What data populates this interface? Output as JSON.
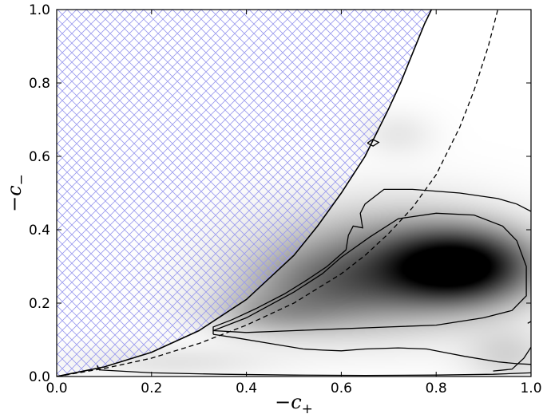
{
  "chart_data": {
    "type": "heatmap",
    "title": "",
    "xlabel": "−c",
    "xlabel_sub": "+",
    "ylabel": "−c",
    "ylabel_sub": "−",
    "xlim": [
      0.0,
      1.0
    ],
    "ylim": [
      0.0,
      1.0
    ],
    "grid": false,
    "x_ticks": [
      "0.0",
      "0.2",
      "0.4",
      "0.6",
      "0.8",
      "1.0"
    ],
    "y_ticks": [
      "0.0",
      "0.2",
      "0.4",
      "0.6",
      "0.8",
      "1.0"
    ],
    "colormap": "grayscale (white = low, black = high density)",
    "hatch_color": "#9999ee",
    "density_peak": {
      "x": 0.85,
      "y": 0.3
    },
    "density_blobs": [
      {
        "x": 0.85,
        "y": 0.3,
        "sx": 0.1,
        "sy": 0.065,
        "w": 1.0
      },
      {
        "x": 0.7,
        "y": 0.3,
        "sx": 0.16,
        "sy": 0.1,
        "w": 0.45
      },
      {
        "x": 0.56,
        "y": 0.24,
        "sx": 0.12,
        "sy": 0.07,
        "w": 0.28
      },
      {
        "x": 0.45,
        "y": 0.17,
        "sx": 0.09,
        "sy": 0.04,
        "w": 0.18
      },
      {
        "x": 0.25,
        "y": 0.04,
        "sx": 0.14,
        "sy": 0.03,
        "w": 0.07
      },
      {
        "x": 0.72,
        "y": 0.66,
        "sx": 0.05,
        "sy": 0.04,
        "w": 0.06
      },
      {
        "x": 0.95,
        "y": 0.06,
        "sx": 0.06,
        "sy": 0.05,
        "w": 0.12
      }
    ],
    "solid_boundary": [
      [
        0.0,
        0.0
      ],
      [
        0.1,
        0.026
      ],
      [
        0.2,
        0.066
      ],
      [
        0.3,
        0.125
      ],
      [
        0.4,
        0.21
      ],
      [
        0.5,
        0.33
      ],
      [
        0.55,
        0.41
      ],
      [
        0.6,
        0.5
      ],
      [
        0.65,
        0.6
      ],
      [
        0.7,
        0.73
      ],
      [
        0.725,
        0.8
      ],
      [
        0.75,
        0.88
      ],
      [
        0.775,
        0.96
      ],
      [
        0.79,
        1.0
      ]
    ],
    "dashed_curve": [
      [
        0.0,
        0.0
      ],
      [
        0.1,
        0.022
      ],
      [
        0.2,
        0.05
      ],
      [
        0.3,
        0.09
      ],
      [
        0.4,
        0.14
      ],
      [
        0.5,
        0.2
      ],
      [
        0.6,
        0.28
      ],
      [
        0.65,
        0.33
      ],
      [
        0.7,
        0.39
      ],
      [
        0.75,
        0.46
      ],
      [
        0.8,
        0.55
      ],
      [
        0.85,
        0.68
      ],
      [
        0.88,
        0.78
      ],
      [
        0.91,
        0.9
      ],
      [
        0.93,
        1.0
      ]
    ],
    "contours": [
      {
        "level": "outer",
        "points": [
          [
            0.085,
            0.03
          ],
          [
            0.09,
            0.018
          ],
          [
            0.2,
            0.01
          ],
          [
            0.35,
            0.006
          ],
          [
            0.5,
            0.004
          ],
          [
            0.65,
            0.003
          ],
          [
            0.8,
            0.004
          ],
          [
            0.92,
            0.006
          ],
          [
            1.0,
            0.01
          ]
        ]
      },
      {
        "level": "outer-tail",
        "points": [
          [
            0.92,
            0.015
          ],
          [
            0.96,
            0.02
          ],
          [
            0.985,
            0.05
          ],
          [
            1.0,
            0.08
          ]
        ]
      },
      {
        "level": "outer-right",
        "points": [
          [
            0.993,
            0.145
          ],
          [
            1.0,
            0.15
          ]
        ]
      },
      {
        "level": "middle",
        "points": [
          [
            0.33,
            0.115
          ],
          [
            0.33,
            0.135
          ],
          [
            0.37,
            0.155
          ],
          [
            0.42,
            0.185
          ],
          [
            0.48,
            0.225
          ],
          [
            0.53,
            0.265
          ],
          [
            0.57,
            0.3
          ],
          [
            0.61,
            0.345
          ],
          [
            0.615,
            0.385
          ],
          [
            0.625,
            0.41
          ],
          [
            0.645,
            0.405
          ],
          [
            0.64,
            0.445
          ],
          [
            0.65,
            0.47
          ],
          [
            0.69,
            0.51
          ],
          [
            0.75,
            0.51
          ],
          [
            0.85,
            0.5
          ],
          [
            0.93,
            0.485
          ],
          [
            0.97,
            0.47
          ],
          [
            1.0,
            0.45
          ]
        ]
      },
      {
        "level": "middle-bottom",
        "points": [
          [
            0.33,
            0.115
          ],
          [
            0.38,
            0.105
          ],
          [
            0.45,
            0.09
          ],
          [
            0.52,
            0.075
          ],
          [
            0.56,
            0.072
          ],
          [
            0.6,
            0.07
          ],
          [
            0.65,
            0.075
          ],
          [
            0.72,
            0.078
          ],
          [
            0.78,
            0.075
          ],
          [
            0.82,
            0.065
          ],
          [
            0.86,
            0.055
          ],
          [
            0.93,
            0.04
          ],
          [
            0.97,
            0.035
          ],
          [
            1.0,
            0.033
          ]
        ]
      },
      {
        "level": "inner",
        "points": [
          [
            0.33,
            0.125
          ],
          [
            0.4,
            0.16
          ],
          [
            0.5,
            0.23
          ],
          [
            0.56,
            0.28
          ],
          [
            0.6,
            0.325
          ],
          [
            0.66,
            0.38
          ],
          [
            0.72,
            0.43
          ],
          [
            0.8,
            0.445
          ],
          [
            0.88,
            0.44
          ],
          [
            0.94,
            0.41
          ],
          [
            0.97,
            0.37
          ],
          [
            0.99,
            0.3
          ],
          [
            0.99,
            0.22
          ],
          [
            0.96,
            0.18
          ],
          [
            0.9,
            0.16
          ],
          [
            0.8,
            0.14
          ],
          [
            0.7,
            0.135
          ],
          [
            0.6,
            0.13
          ],
          [
            0.5,
            0.125
          ],
          [
            0.4,
            0.12
          ],
          [
            0.33,
            0.125
          ]
        ]
      },
      {
        "level": "small-diamond",
        "points": [
          [
            0.655,
            0.636
          ],
          [
            0.666,
            0.646
          ],
          [
            0.679,
            0.638
          ],
          [
            0.667,
            0.628
          ],
          [
            0.655,
            0.636
          ]
        ]
      }
    ]
  }
}
